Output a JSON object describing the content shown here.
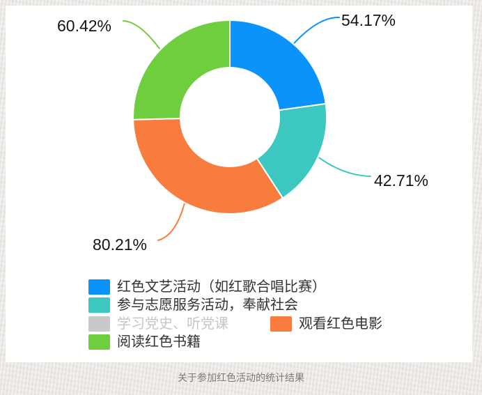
{
  "chart_data": {
    "type": "pie",
    "subtype": "donut",
    "title": "关于参加红色活动的统计结果",
    "direction": "clockwise",
    "start_angle_deg": 0,
    "series": [
      {
        "name": "红色文艺活动（如红歌合唱比赛）",
        "value": 54.17,
        "label": "54.17%",
        "color": "#0a93fa"
      },
      {
        "name": "参与志愿服务活动，奉献社会",
        "value": 42.71,
        "label": "42.71%",
        "color": "#3cc8c0"
      },
      {
        "name": "观看红色电影",
        "value": 80.21,
        "label": "80.21%",
        "color": "#f87c3e"
      },
      {
        "name": "阅读红色书籍",
        "value": 60.42,
        "label": "60.42%",
        "color": "#6fce3e"
      }
    ],
    "legend": {
      "position": "bottom-left",
      "items": [
        {
          "label": "红色文艺活动（如红歌合唱比赛）",
          "color": "#0a93fa",
          "enabled": true
        },
        {
          "label": "参与志愿服务活动，奉献社会",
          "color": "#3cc8c0",
          "enabled": true
        },
        {
          "label": "学习党史、听党课",
          "color": "#c9c9c9",
          "enabled": false
        },
        {
          "label": "观看红色电影",
          "color": "#f87c3e",
          "enabled": true
        },
        {
          "label": "阅读红色书籍",
          "color": "#6fce3e",
          "enabled": true
        }
      ]
    }
  }
}
